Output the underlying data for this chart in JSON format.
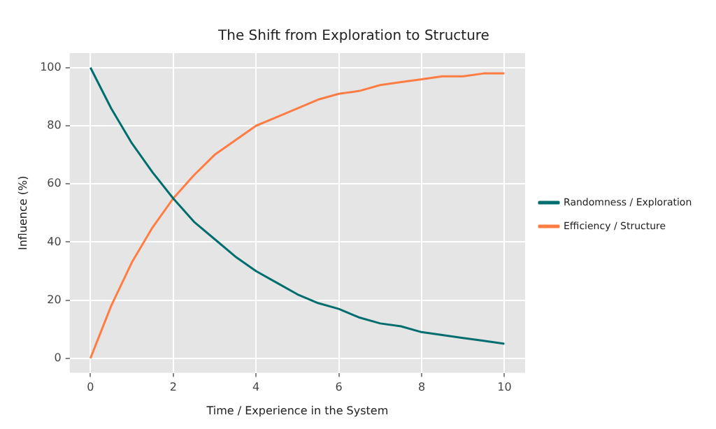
{
  "chart_data": {
    "type": "line",
    "title": "The Shift from Exploration to Structure",
    "xlabel": "Time / Experience in the System",
    "ylabel": "Influence (%)",
    "x": [
      0,
      0.5,
      1,
      1.5,
      2,
      2.5,
      3,
      3.5,
      4,
      4.5,
      5,
      5.5,
      6,
      6.5,
      7,
      7.5,
      8,
      8.5,
      9,
      9.5,
      10
    ],
    "series": [
      {
        "name": "Randomness / Exploration",
        "color": "#006d6f",
        "values": [
          100,
          86,
          74,
          64,
          55,
          47,
          41,
          35,
          30,
          26,
          22,
          19,
          17,
          14,
          12,
          11,
          9,
          8,
          7,
          6,
          5
        ]
      },
      {
        "name": "Efficiency / Structure",
        "color": "#ff7c43",
        "values": [
          0,
          18,
          33,
          45,
          55,
          63,
          70,
          75,
          80,
          83,
          86,
          89,
          91,
          92,
          94,
          95,
          96,
          97,
          97,
          98,
          98
        ]
      }
    ],
    "xlim": [
      -0.5,
      10.5
    ],
    "ylim": [
      -5,
      105
    ],
    "xticks": [
      0,
      2,
      4,
      6,
      8,
      10
    ],
    "yticks": [
      0,
      20,
      40,
      60,
      80,
      100
    ],
    "grid": true,
    "legend": "right",
    "marker": "none",
    "line_style": "solid"
  }
}
